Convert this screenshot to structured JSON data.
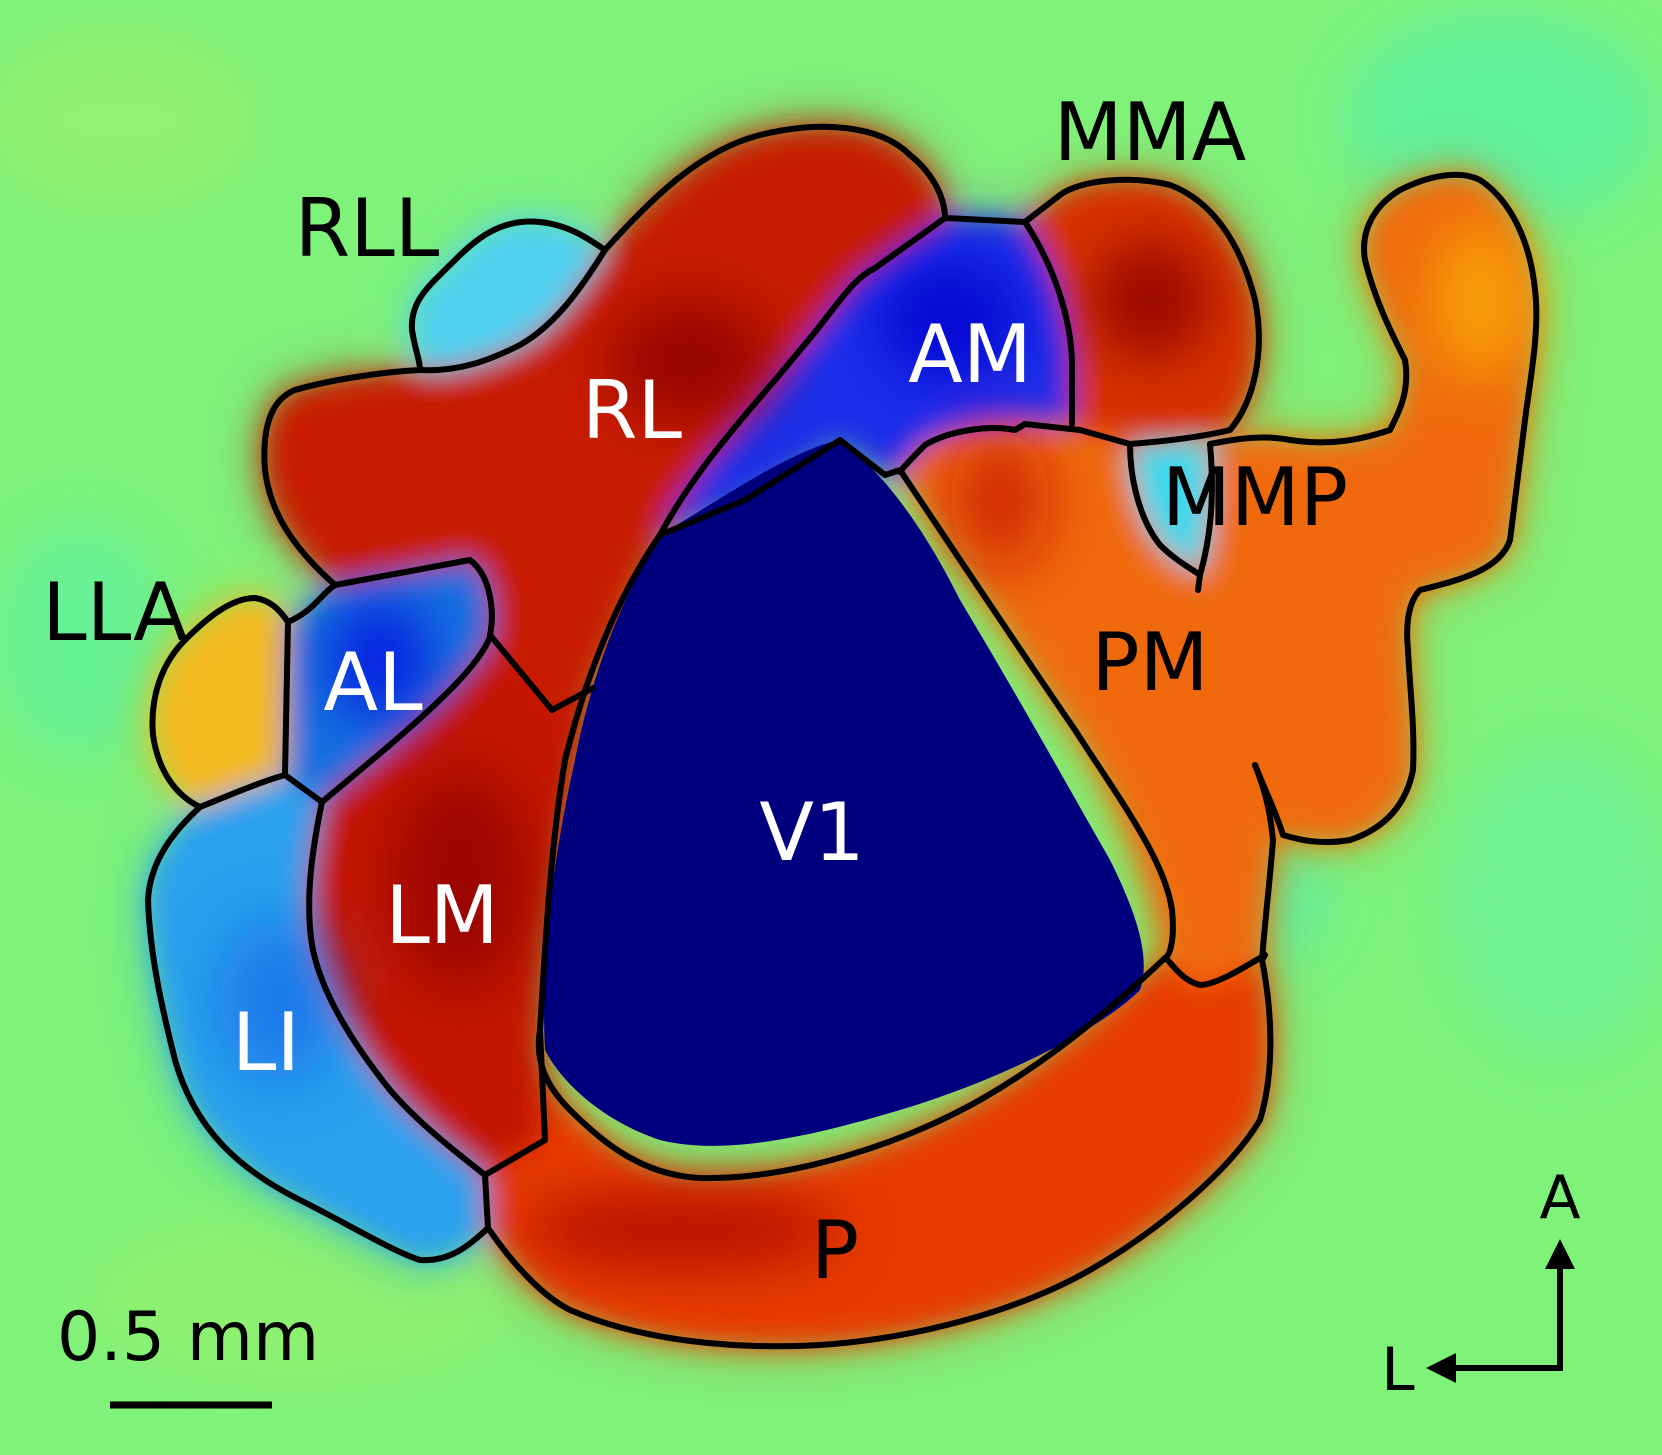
{
  "figure": {
    "colormap": [
      "#00007f",
      "#0000ff",
      "#00ffff",
      "#7fff7f",
      "#ffff00",
      "#ff7f00",
      "#ff0000",
      "#7f0000"
    ],
    "background_color": "#7ff27a"
  },
  "areas": [
    {
      "id": "v1",
      "label": "V1",
      "fill": "#00007f",
      "label_color": "light"
    },
    {
      "id": "rl",
      "label": "RL",
      "fill": "#c81a00",
      "label_color": "light"
    },
    {
      "id": "am",
      "label": "AM",
      "fill": "#1a2fe8",
      "label_color": "light"
    },
    {
      "id": "al",
      "label": "AL",
      "fill": "#1470e0",
      "label_color": "light"
    },
    {
      "id": "lm",
      "label": "LM",
      "fill": "#c41200",
      "label_color": "light"
    },
    {
      "id": "li",
      "label": "LI",
      "fill": "#2aa0ee",
      "label_color": "light"
    },
    {
      "id": "rll",
      "label": "RLL",
      "fill": "#4fd0f0",
      "label_color": "dark"
    },
    {
      "id": "lla",
      "label": "LLA",
      "fill": "#f2b81c",
      "label_color": "dark"
    },
    {
      "id": "mma",
      "label": "MMA",
      "fill": "#d83000",
      "label_color": "dark"
    },
    {
      "id": "mmp",
      "label": "MMP",
      "fill": "#3ed8ec",
      "label_color": "dark"
    },
    {
      "id": "pm",
      "label": "PM",
      "fill": "#f06a0a",
      "label_color": "dark"
    },
    {
      "id": "p",
      "label": "P",
      "fill": "#e83a00",
      "label_color": "dark"
    }
  ],
  "scale_bar": {
    "label": "0.5 mm"
  },
  "orientation": {
    "anterior": "A",
    "lateral": "L"
  }
}
